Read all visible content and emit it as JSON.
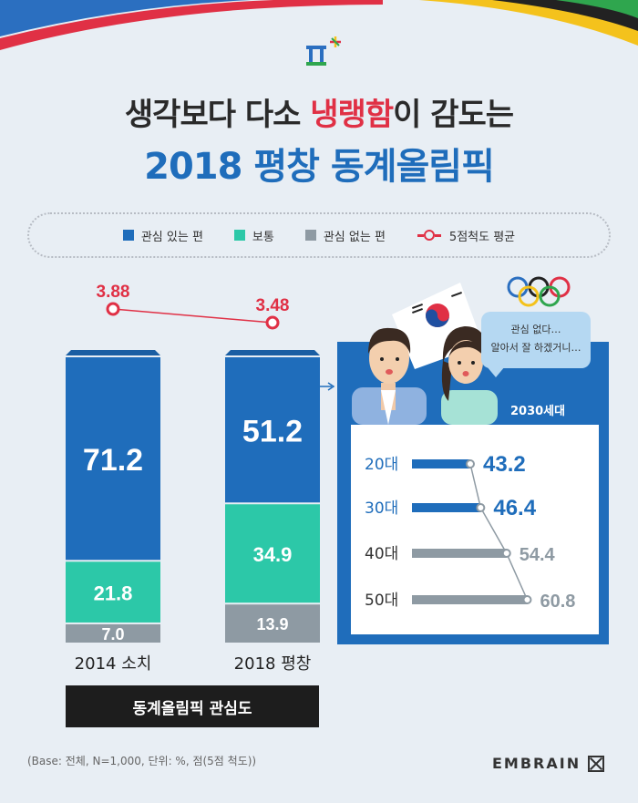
{
  "headline": {
    "line1_pre": "생각보다 다소 ",
    "line1_highlight": "냉랭함",
    "line1_post": "이 감도는",
    "line2": "2018 평창 동계올림픽"
  },
  "legend": {
    "interested": "관심 있는 편",
    "neutral": "보통",
    "not_interested": "관심 없는 편",
    "average": "5점척도 평균"
  },
  "colors": {
    "interested": "#1f6dbb",
    "neutral": "#2cc8a8",
    "not_interested": "#8e9aa3",
    "average": "#e03045"
  },
  "chart_data": [
    {
      "type": "bar",
      "stacked": true,
      "categories": [
        "2014 소치",
        "2018 평창"
      ],
      "series": [
        {
          "name": "관심 있는 편",
          "values": [
            71.2,
            51.2
          ]
        },
        {
          "name": "보통",
          "values": [
            21.8,
            34.9
          ]
        },
        {
          "name": "관심 없는 편",
          "values": [
            7.0,
            13.9
          ]
        }
      ],
      "value_labels": {
        "관심 있는 편": [
          "71.2",
          "51.2"
        ],
        "보통": [
          "21.8",
          "34.9"
        ],
        "관심 없는 편": [
          "7.0",
          "13.9"
        ]
      },
      "ylim": [
        0,
        100
      ],
      "title": "동계올림픽 관심도"
    },
    {
      "type": "line",
      "categories": [
        "2014 소치",
        "2018 평창"
      ],
      "series": [
        {
          "name": "5점척도 평균",
          "values": [
            3.88,
            3.48
          ]
        }
      ],
      "value_labels": [
        "3.88",
        "3.48"
      ]
    },
    {
      "type": "bar",
      "orientation": "horizontal",
      "panel_label": "2030세대",
      "categories": [
        "20대",
        "30대",
        "40대",
        "50대"
      ],
      "values": [
        43.2,
        46.4,
        54.4,
        60.8
      ],
      "value_labels": [
        "43.2",
        "46.4",
        "54.4",
        "60.8"
      ]
    }
  ],
  "speech_bubble": {
    "line1": "관심 없다…",
    "line2": "알아서 잘 하겠거니…"
  },
  "footnote": "(Base: 전체, N=1,000, 단위: %, 점(5점 척도))",
  "brand": "EMBRAIN"
}
